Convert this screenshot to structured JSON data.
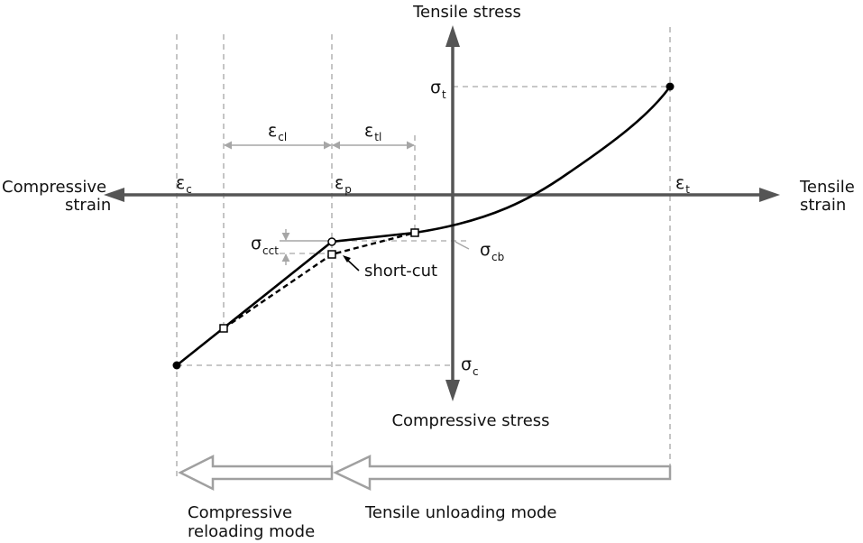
{
  "axes": {
    "tensile_stress": "Tensile stress",
    "compressive_stress": "Compressive stress",
    "compressive_strain": [
      "Compressive",
      "strain"
    ],
    "tensile_strain": [
      "Tensile",
      "strain"
    ]
  },
  "symbols": {
    "sigma_t": {
      "base": "σ",
      "sub": "t"
    },
    "sigma_c": {
      "base": "σ",
      "sub": "c"
    },
    "sigma_cct": {
      "base": "σ",
      "sub": "cct"
    },
    "sigma_cb": {
      "base": "σ",
      "sub": "cb"
    },
    "eps_c": {
      "base": "ε",
      "sub": "c"
    },
    "eps_p": {
      "base": "ε",
      "sub": "p"
    },
    "eps_t": {
      "base": "ε",
      "sub": "t"
    },
    "eps_cl": {
      "base": "ε",
      "sub": "cl"
    },
    "eps_tl": {
      "base": "ε",
      "sub": "tl"
    }
  },
  "annotations": {
    "shortcut": "short-cut"
  },
  "modes": {
    "compressive_reloading": [
      "Compressive",
      "reloading mode"
    ],
    "tensile_unloading": "Tensile unloading mode"
  }
}
